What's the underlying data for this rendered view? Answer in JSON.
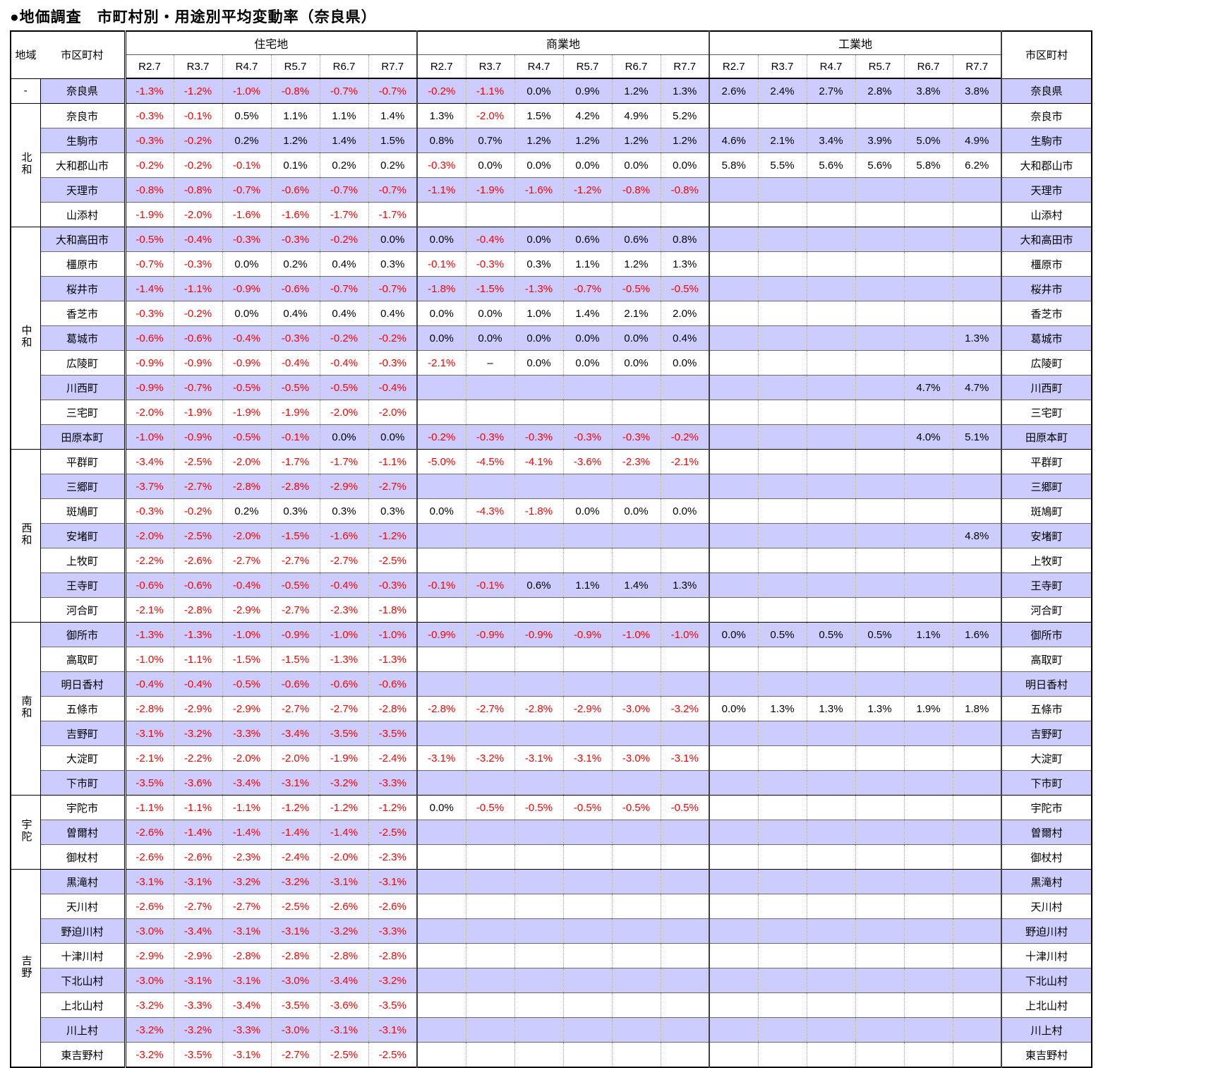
{
  "title": "●地価調査　市町村別・用途別平均変動率（奈良県）",
  "colors": {
    "row_highlight": "#ccccff",
    "negative_text": "#ff0000",
    "positive_text": "#000000"
  },
  "table": {
    "headers": {
      "region": "地域",
      "municipality_left": "市区町村",
      "municipality_right": "市区町村",
      "groups": [
        "住宅地",
        "商業地",
        "工業地"
      ],
      "periods": [
        "R2.7",
        "R3.7",
        "R4.7",
        "R5.7",
        "R6.7",
        "R7.7"
      ]
    },
    "regions": [
      {
        "label": "-",
        "rows": [
          {
            "name": "奈良県",
            "res": [
              "-1.3%",
              "-1.2%",
              "-1.0%",
              "-0.8%",
              "-0.7%",
              "-0.7%"
            ],
            "com": [
              "-0.2%",
              "-1.1%",
              "0.0%",
              "0.9%",
              "1.2%",
              "1.3%"
            ],
            "ind": [
              "2.6%",
              "2.4%",
              "2.7%",
              "2.8%",
              "3.8%",
              "3.8%"
            ]
          }
        ]
      },
      {
        "label": "北和",
        "rows": [
          {
            "name": "奈良市",
            "res": [
              "-0.3%",
              "-0.1%",
              "0.5%",
              "1.1%",
              "1.1%",
              "1.4%"
            ],
            "com": [
              "1.3%",
              "-2.0%",
              "1.5%",
              "4.2%",
              "4.9%",
              "5.2%"
            ],
            "ind": []
          },
          {
            "name": "生駒市",
            "res": [
              "-0.3%",
              "-0.2%",
              "0.2%",
              "1.2%",
              "1.4%",
              "1.5%"
            ],
            "com": [
              "0.8%",
              "0.7%",
              "1.2%",
              "1.2%",
              "1.2%",
              "1.2%"
            ],
            "ind": [
              "4.6%",
              "2.1%",
              "3.4%",
              "3.9%",
              "5.0%",
              "4.9%"
            ]
          },
          {
            "name": "大和郡山市",
            "res": [
              "-0.2%",
              "-0.2%",
              "-0.1%",
              "0.1%",
              "0.2%",
              "0.2%"
            ],
            "com": [
              "-0.3%",
              "0.0%",
              "0.0%",
              "0.0%",
              "0.0%",
              "0.0%"
            ],
            "ind": [
              "5.8%",
              "5.5%",
              "5.6%",
              "5.6%",
              "5.8%",
              "6.2%"
            ]
          },
          {
            "name": "天理市",
            "res": [
              "-0.8%",
              "-0.8%",
              "-0.7%",
              "-0.6%",
              "-0.7%",
              "-0.7%"
            ],
            "com": [
              "-1.1%",
              "-1.9%",
              "-1.6%",
              "-1.2%",
              "-0.8%",
              "-0.8%"
            ],
            "ind": []
          },
          {
            "name": "山添村",
            "res": [
              "-1.9%",
              "-2.0%",
              "-1.6%",
              "-1.6%",
              "-1.7%",
              "-1.7%"
            ],
            "com": [],
            "ind": []
          }
        ]
      },
      {
        "label": "中和",
        "rows": [
          {
            "name": "大和高田市",
            "res": [
              "-0.5%",
              "-0.4%",
              "-0.3%",
              "-0.3%",
              "-0.2%",
              "0.0%"
            ],
            "com": [
              "0.0%",
              "-0.4%",
              "0.0%",
              "0.6%",
              "0.6%",
              "0.8%"
            ],
            "ind": []
          },
          {
            "name": "橿原市",
            "res": [
              "-0.7%",
              "-0.3%",
              "0.0%",
              "0.2%",
              "0.4%",
              "0.3%"
            ],
            "com": [
              "-0.1%",
              "-0.3%",
              "0.3%",
              "1.1%",
              "1.2%",
              "1.3%"
            ],
            "ind": []
          },
          {
            "name": "桜井市",
            "res": [
              "-1.4%",
              "-1.1%",
              "-0.9%",
              "-0.6%",
              "-0.7%",
              "-0.7%"
            ],
            "com": [
              "-1.8%",
              "-1.5%",
              "-1.3%",
              "-0.7%",
              "-0.5%",
              "-0.5%"
            ],
            "ind": []
          },
          {
            "name": "香芝市",
            "res": [
              "-0.3%",
              "-0.2%",
              "0.0%",
              "0.4%",
              "0.4%",
              "0.4%"
            ],
            "com": [
              "0.0%",
              "0.0%",
              "1.0%",
              "1.4%",
              "2.1%",
              "2.0%"
            ],
            "ind": []
          },
          {
            "name": "葛城市",
            "res": [
              "-0.6%",
              "-0.6%",
              "-0.4%",
              "-0.3%",
              "-0.2%",
              "-0.2%"
            ],
            "com": [
              "0.0%",
              "0.0%",
              "0.0%",
              "0.0%",
              "0.0%",
              "0.4%"
            ],
            "ind": [
              "",
              "",
              "",
              "",
              "",
              "1.3%"
            ]
          },
          {
            "name": "広陵町",
            "res": [
              "-0.9%",
              "-0.9%",
              "-0.9%",
              "-0.4%",
              "-0.4%",
              "-0.3%"
            ],
            "com": [
              "-2.1%",
              "–",
              "0.0%",
              "0.0%",
              "0.0%",
              "0.0%"
            ],
            "ind": []
          },
          {
            "name": "川西町",
            "res": [
              "-0.9%",
              "-0.7%",
              "-0.5%",
              "-0.5%",
              "-0.5%",
              "-0.4%"
            ],
            "com": [],
            "ind": [
              "",
              "",
              "",
              "",
              "4.7%",
              "4.7%"
            ]
          },
          {
            "name": "三宅町",
            "res": [
              "-2.0%",
              "-1.9%",
              "-1.9%",
              "-1.9%",
              "-2.0%",
              "-2.0%"
            ],
            "com": [],
            "ind": []
          },
          {
            "name": "田原本町",
            "res": [
              "-1.0%",
              "-0.9%",
              "-0.5%",
              "-0.1%",
              "0.0%",
              "0.0%"
            ],
            "com": [
              "-0.2%",
              "-0.3%",
              "-0.3%",
              "-0.3%",
              "-0.3%",
              "-0.2%"
            ],
            "ind": [
              "",
              "",
              "",
              "",
              "4.0%",
              "5.1%"
            ]
          }
        ]
      },
      {
        "label": "西和",
        "rows": [
          {
            "name": "平群町",
            "res": [
              "-3.4%",
              "-2.5%",
              "-2.0%",
              "-1.7%",
              "-1.7%",
              "-1.1%"
            ],
            "com": [
              "-5.0%",
              "-4.5%",
              "-4.1%",
              "-3.6%",
              "-2.3%",
              "-2.1%"
            ],
            "ind": []
          },
          {
            "name": "三郷町",
            "res": [
              "-3.7%",
              "-2.7%",
              "-2.8%",
              "-2.8%",
              "-2.9%",
              "-2.7%"
            ],
            "com": [],
            "ind": []
          },
          {
            "name": "斑鳩町",
            "res": [
              "-0.3%",
              "-0.2%",
              "0.2%",
              "0.3%",
              "0.3%",
              "0.3%"
            ],
            "com": [
              "0.0%",
              "-4.3%",
              "-1.8%",
              "0.0%",
              "0.0%",
              "0.0%"
            ],
            "ind": []
          },
          {
            "name": "安堵町",
            "res": [
              "-2.0%",
              "-2.5%",
              "-2.0%",
              "-1.5%",
              "-1.6%",
              "-1.2%"
            ],
            "com": [],
            "ind": [
              "",
              "",
              "",
              "",
              "",
              "4.8%"
            ]
          },
          {
            "name": "上牧町",
            "res": [
              "-2.2%",
              "-2.6%",
              "-2.7%",
              "-2.7%",
              "-2.7%",
              "-2.5%"
            ],
            "com": [],
            "ind": []
          },
          {
            "name": "王寺町",
            "res": [
              "-0.6%",
              "-0.6%",
              "-0.4%",
              "-0.5%",
              "-0.4%",
              "-0.3%"
            ],
            "com": [
              "-0.1%",
              "-0.1%",
              "0.6%",
              "1.1%",
              "1.4%",
              "1.3%"
            ],
            "ind": []
          },
          {
            "name": "河合町",
            "res": [
              "-2.1%",
              "-2.8%",
              "-2.9%",
              "-2.7%",
              "-2.3%",
              "-1.8%"
            ],
            "com": [],
            "ind": []
          }
        ]
      },
      {
        "label": "南和",
        "rows": [
          {
            "name": "御所市",
            "res": [
              "-1.3%",
              "-1.3%",
              "-1.0%",
              "-0.9%",
              "-1.0%",
              "-1.0%"
            ],
            "com": [
              "-0.9%",
              "-0.9%",
              "-0.9%",
              "-0.9%",
              "-1.0%",
              "-1.0%"
            ],
            "ind": [
              "0.0%",
              "0.5%",
              "0.5%",
              "0.5%",
              "1.1%",
              "1.6%"
            ]
          },
          {
            "name": "高取町",
            "res": [
              "-1.0%",
              "-1.1%",
              "-1.5%",
              "-1.5%",
              "-1.3%",
              "-1.3%"
            ],
            "com": [],
            "ind": []
          },
          {
            "name": "明日香村",
            "res": [
              "-0.4%",
              "-0.4%",
              "-0.5%",
              "-0.6%",
              "-0.6%",
              "-0.6%"
            ],
            "com": [],
            "ind": []
          },
          {
            "name": "五條市",
            "res": [
              "-2.8%",
              "-2.9%",
              "-2.9%",
              "-2.7%",
              "-2.7%",
              "-2.8%"
            ],
            "com": [
              "-2.8%",
              "-2.7%",
              "-2.8%",
              "-2.9%",
              "-3.0%",
              "-3.2%"
            ],
            "ind": [
              "0.0%",
              "1.3%",
              "1.3%",
              "1.3%",
              "1.9%",
              "1.8%"
            ]
          },
          {
            "name": "吉野町",
            "res": [
              "-3.1%",
              "-3.2%",
              "-3.3%",
              "-3.4%",
              "-3.5%",
              "-3.5%"
            ],
            "com": [],
            "ind": []
          },
          {
            "name": "大淀町",
            "res": [
              "-2.1%",
              "-2.2%",
              "-2.0%",
              "-2.0%",
              "-1.9%",
              "-2.4%"
            ],
            "com": [
              "-3.1%",
              "-3.2%",
              "-3.1%",
              "-3.1%",
              "-3.0%",
              "-3.1%"
            ],
            "ind": []
          },
          {
            "name": "下市町",
            "res": [
              "-3.5%",
              "-3.6%",
              "-3.4%",
              "-3.1%",
              "-3.2%",
              "-3.3%"
            ],
            "com": [],
            "ind": []
          }
        ]
      },
      {
        "label": "宇陀",
        "rows": [
          {
            "name": "宇陀市",
            "res": [
              "-1.1%",
              "-1.1%",
              "-1.1%",
              "-1.2%",
              "-1.2%",
              "-1.2%"
            ],
            "com": [
              "0.0%",
              "-0.5%",
              "-0.5%",
              "-0.5%",
              "-0.5%",
              "-0.5%"
            ],
            "ind": []
          },
          {
            "name": "曽爾村",
            "res": [
              "-2.6%",
              "-1.4%",
              "-1.4%",
              "-1.4%",
              "-1.4%",
              "-2.5%"
            ],
            "com": [],
            "ind": []
          },
          {
            "name": "御杖村",
            "res": [
              "-2.6%",
              "-2.6%",
              "-2.3%",
              "-2.4%",
              "-2.0%",
              "-2.3%"
            ],
            "com": [],
            "ind": []
          }
        ]
      },
      {
        "label": "吉野",
        "rows": [
          {
            "name": "黒滝村",
            "res": [
              "-3.1%",
              "-3.1%",
              "-3.2%",
              "-3.2%",
              "-3.1%",
              "-3.1%"
            ],
            "com": [],
            "ind": []
          },
          {
            "name": "天川村",
            "res": [
              "-2.6%",
              "-2.7%",
              "-2.7%",
              "-2.5%",
              "-2.6%",
              "-2.6%"
            ],
            "com": [],
            "ind": []
          },
          {
            "name": "野迫川村",
            "res": [
              "-3.0%",
              "-3.4%",
              "-3.1%",
              "-3.1%",
              "-3.2%",
              "-3.3%"
            ],
            "com": [],
            "ind": []
          },
          {
            "name": "十津川村",
            "res": [
              "-2.9%",
              "-2.9%",
              "-2.8%",
              "-2.8%",
              "-2.8%",
              "-2.8%"
            ],
            "com": [],
            "ind": []
          },
          {
            "name": "下北山村",
            "res": [
              "-3.0%",
              "-3.1%",
              "-3.1%",
              "-3.0%",
              "-3.4%",
              "-3.2%"
            ],
            "com": [],
            "ind": []
          },
          {
            "name": "上北山村",
            "res": [
              "-3.2%",
              "-3.3%",
              "-3.4%",
              "-3.5%",
              "-3.6%",
              "-3.5%"
            ],
            "com": [],
            "ind": []
          },
          {
            "name": "川上村",
            "res": [
              "-3.2%",
              "-3.2%",
              "-3.3%",
              "-3.0%",
              "-3.1%",
              "-3.1%"
            ],
            "com": [],
            "ind": []
          },
          {
            "name": "東吉野村",
            "res": [
              "-3.2%",
              "-3.5%",
              "-3.1%",
              "-2.7%",
              "-2.5%",
              "-2.5%"
            ],
            "com": [],
            "ind": []
          }
        ]
      }
    ]
  }
}
